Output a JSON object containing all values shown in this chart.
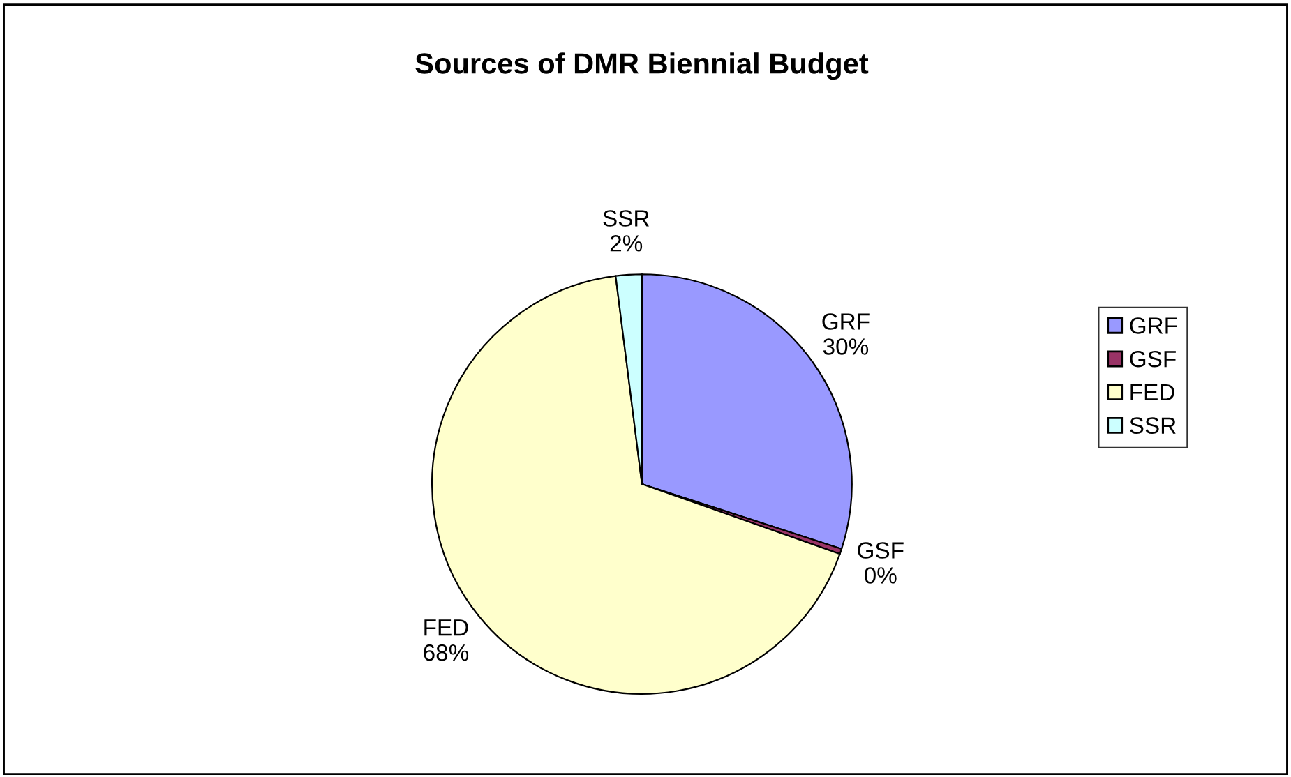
{
  "chart_data": {
    "type": "pie",
    "title": "Sources of DMR Biennial Budget",
    "categories": [
      "GRF",
      "GSF",
      "FED",
      "SSR"
    ],
    "values": [
      30,
      0.4,
      67.6,
      2
    ],
    "value_labels": [
      "30%",
      "0%",
      "68%",
      "2%"
    ],
    "colors": [
      "#9999ff",
      "#993366",
      "#ffffcc",
      "#ccffff"
    ],
    "legend": "right"
  }
}
